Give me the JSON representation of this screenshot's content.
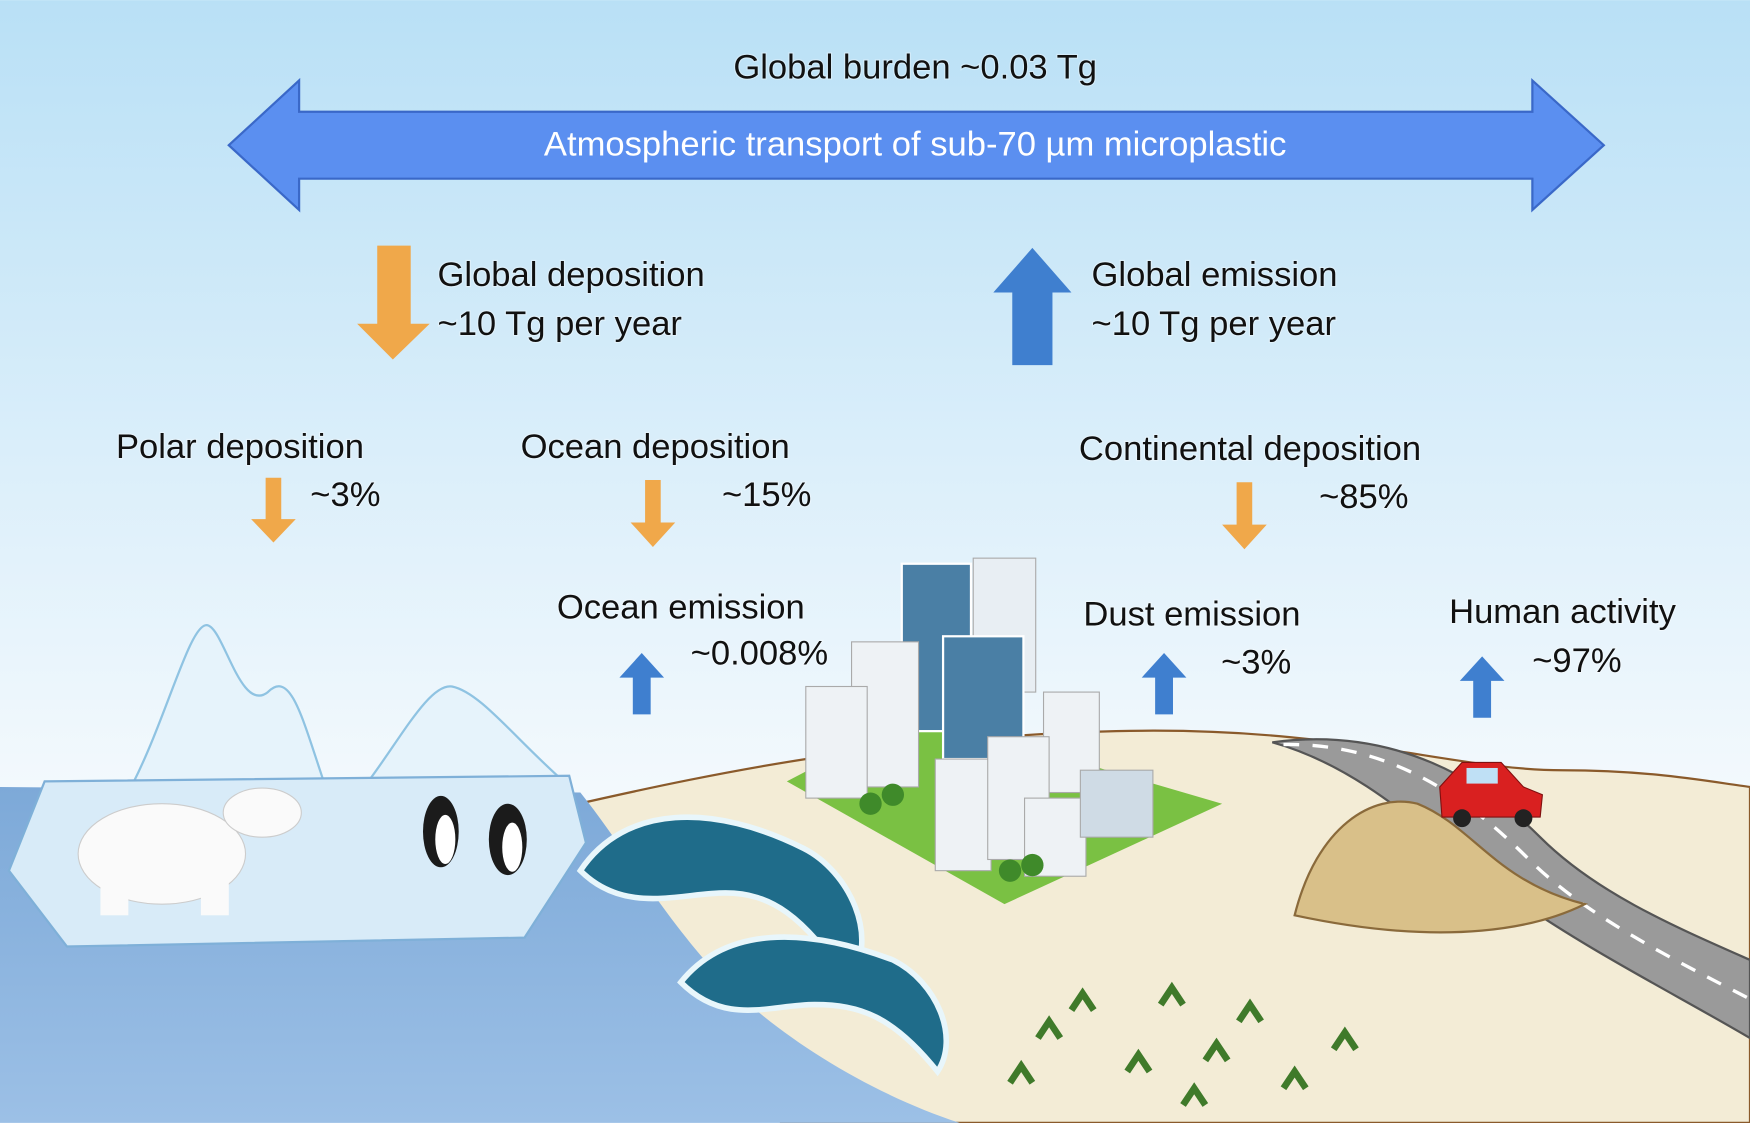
{
  "header": {
    "burden": "Global burden ~0.03 Tg",
    "transport": "Atmospheric transport of sub-70 µm microplastic"
  },
  "global": {
    "deposition": {
      "label": "Global deposition",
      "amount": "~10 Tg per year"
    },
    "emission": {
      "label": "Global emission",
      "amount": "~10 Tg per year"
    }
  },
  "fluxes": [
    {
      "label": "Polar deposition",
      "share": "~3%"
    },
    {
      "label": "Ocean deposition",
      "share": "~15%"
    },
    {
      "label": "Continental deposition",
      "share": "~85%"
    },
    {
      "label": "Ocean emission",
      "share": "~0.008%"
    },
    {
      "label": "Dust emission",
      "share": "~3%"
    },
    {
      "label": "Human activity",
      "share": "~97%"
    }
  ]
}
